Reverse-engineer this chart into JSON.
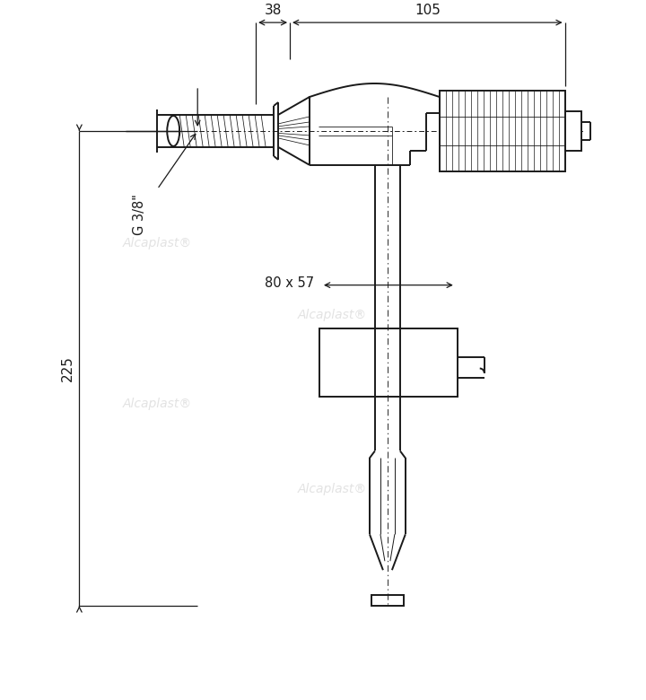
{
  "bg_color": "#ffffff",
  "lc": "#1a1a1a",
  "wc": "#d0d0d0",
  "watermark": "Alcaplast®",
  "dim_38": "38",
  "dim_105": "105",
  "dim_225": "225",
  "dim_g38": "G 3/8\"",
  "dim_80x57": "80 x 57",
  "lw": 1.4,
  "lt": 0.7,
  "ld": 0.9
}
